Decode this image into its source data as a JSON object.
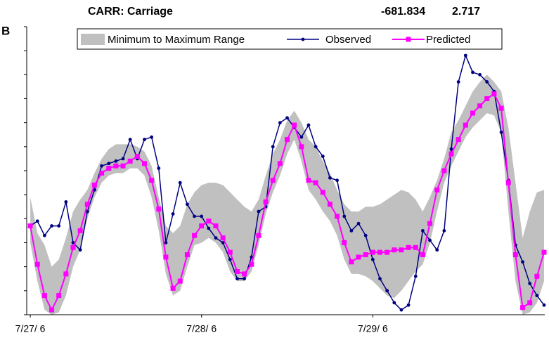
{
  "chart_data": {
    "type": "line",
    "panel_label": "B",
    "title": "CARR: Carriage",
    "annotations": [
      "-681.834",
      "2.717"
    ],
    "x": [
      0,
      1,
      2,
      3,
      4,
      5,
      6,
      7,
      8,
      9,
      10,
      11,
      12,
      13,
      14,
      15,
      16,
      17,
      18,
      19,
      20,
      21,
      22,
      23,
      24,
      25,
      26,
      27,
      28,
      29,
      30,
      31,
      32,
      33,
      34,
      35,
      36,
      37,
      38,
      39,
      40,
      41,
      42,
      43,
      44,
      45,
      46,
      47,
      48,
      49,
      50,
      51,
      52,
      53,
      54,
      55,
      56,
      57,
      58,
      59,
      60,
      61,
      62,
      63,
      64,
      65,
      66,
      67,
      68,
      69,
      70,
      71,
      72
    ],
    "xlim": [
      -0.5,
      72.1
    ],
    "xticks": [
      {
        "value": 0,
        "label": "7/27/ 6"
      },
      {
        "value": 24,
        "label": "7/28/ 6"
      },
      {
        "value": 48,
        "label": "7/29/ 6"
      }
    ],
    "ylim": [
      0,
      12
    ],
    "yticks": [
      0,
      1,
      2,
      3,
      4,
      5,
      6,
      7,
      8,
      9,
      10,
      11,
      12
    ],
    "grid": false,
    "series": [
      {
        "name": "Minimum to Maximum Range",
        "color": "#c0c0c0",
        "type": "range",
        "high": [
          4.9,
          3.4,
          2.9,
          2.0,
          2.3,
          3.2,
          4.3,
          4.8,
          5.2,
          5.9,
          6.5,
          6.9,
          7.1,
          7.1,
          7.1,
          7.0,
          6.8,
          6.2,
          4.9,
          3.7,
          3.4,
          3.7,
          4.6,
          5.1,
          5.4,
          5.5,
          5.5,
          5.4,
          5.1,
          4.8,
          4.5,
          4.3,
          4.8,
          5.8,
          6.7,
          7.3,
          8.1,
          8.5,
          8.0,
          7.3,
          7.0,
          6.4,
          5.9,
          5.2,
          4.6,
          4.3,
          4.3,
          4.5,
          4.5,
          4.6,
          4.8,
          5.0,
          5.2,
          5.1,
          4.8,
          4.3,
          4.9,
          5.6,
          6.5,
          7.6,
          8.1,
          8.7,
          9.3,
          9.7,
          10.0,
          9.7,
          9.3,
          7.8,
          5.5,
          3.2,
          4.3,
          5.1,
          5.2
        ],
        "low": [
          3.0,
          1.4,
          0.2,
          0,
          0.1,
          0.8,
          2.0,
          2.7,
          4.0,
          4.9,
          5.5,
          5.8,
          5.9,
          5.9,
          6.1,
          6.1,
          5.8,
          4.9,
          3.5,
          1.7,
          0.8,
          1.0,
          2.0,
          2.9,
          3.0,
          3.2,
          3.0,
          2.6,
          1.8,
          1.4,
          1.4,
          1.8,
          2.9,
          4.2,
          5.1,
          5.8,
          6.7,
          7.3,
          6.4,
          5.2,
          4.8,
          4.3,
          3.9,
          3.3,
          2.3,
          1.7,
          1.7,
          1.6,
          1.4,
          1.1,
          0.8,
          0.7,
          1.0,
          1.4,
          1.8,
          2.1,
          3.0,
          4.3,
          5.5,
          6.2,
          6.8,
          7.4,
          7.8,
          8.1,
          8.4,
          8.3,
          7.6,
          4.3,
          1.4,
          0,
          0.1,
          0.5,
          1.4
        ]
      },
      {
        "name": "Observed",
        "color": "#000080",
        "values": [
          3.7,
          3.9,
          3.3,
          3.7,
          3.7,
          4.7,
          3.0,
          2.7,
          4.3,
          5.2,
          6.2,
          6.3,
          6.4,
          6.5,
          7.3,
          6.5,
          7.3,
          7.4,
          6.1,
          3.0,
          4.2,
          5.5,
          4.6,
          4.1,
          4.1,
          3.6,
          3.2,
          3.0,
          2.3,
          1.5,
          1.5,
          2.4,
          4.3,
          4.5,
          7.0,
          8.0,
          8.2,
          7.8,
          7.4,
          7.9,
          7.0,
          6.6,
          5.7,
          5.6,
          4.1,
          3.5,
          3.8,
          3.3,
          2.3,
          1.5,
          1.0,
          0.5,
          0.2,
          0.4,
          1.6,
          3.5,
          3.1,
          2.7,
          3.5,
          6.9,
          9.7,
          10.8,
          10.1,
          10.0,
          9.7,
          9.3,
          7.6,
          5.6,
          2.9,
          2.2,
          1.3,
          0.8,
          0.4
        ]
      },
      {
        "name": "Predicted",
        "color": "#ff00ff",
        "values": [
          3.7,
          2.1,
          0.8,
          0.2,
          0.8,
          1.7,
          2.8,
          3.5,
          4.6,
          5.4,
          5.9,
          6.1,
          6.2,
          6.2,
          6.4,
          6.6,
          6.3,
          5.6,
          4.4,
          2.4,
          1.1,
          1.4,
          2.5,
          3.3,
          3.7,
          3.9,
          3.7,
          3.2,
          2.6,
          1.8,
          1.7,
          2.1,
          3.3,
          4.7,
          5.6,
          6.3,
          7.3,
          7.9,
          7.0,
          5.6,
          5.5,
          5.1,
          4.6,
          4.1,
          3.0,
          2.2,
          2.4,
          2.5,
          2.6,
          2.6,
          2.6,
          2.7,
          2.7,
          2.8,
          2.8,
          2.5,
          3.8,
          5.2,
          6.0,
          6.7,
          7.3,
          7.9,
          8.4,
          8.7,
          9.0,
          9.2,
          8.6,
          5.5,
          2.5,
          0.3,
          0.5,
          1.6,
          2.6
        ]
      }
    ]
  }
}
